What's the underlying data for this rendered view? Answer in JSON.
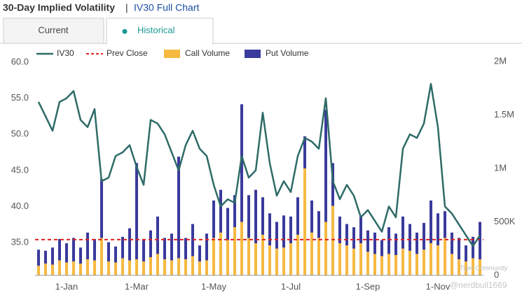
{
  "header": {
    "title": "30-Day Implied Volatility",
    "separator": "|",
    "link": "IV30 Full Chart"
  },
  "tabs": [
    "Current",
    "Historical"
  ],
  "watermark": [
    "Tiger Community",
    "@nerdbull1669"
  ],
  "chart_data": {
    "type": "combo",
    "categories": [
      null,
      null,
      null,
      null,
      "1-Jan",
      null,
      null,
      null,
      null,
      null,
      null,
      null,
      null,
      null,
      "1-Mar",
      null,
      null,
      null,
      null,
      null,
      null,
      null,
      null,
      null,
      null,
      "1-May",
      null,
      null,
      null,
      null,
      null,
      null,
      null,
      null,
      null,
      null,
      "1-Jul",
      null,
      null,
      null,
      null,
      null,
      null,
      null,
      null,
      null,
      null,
      "1-Sep",
      null,
      null,
      null,
      null,
      null,
      null,
      null,
      null,
      null,
      "1-Nov",
      null,
      null,
      null,
      null,
      null,
      null
    ],
    "series": [
      {
        "name": "IV30",
        "color": "#2e6b67",
        "values": [
          54.5,
          52.5,
          50.5,
          54.5,
          55.0,
          56.0,
          52.0,
          51.0,
          53.5,
          43.5,
          44.0,
          47.0,
          47.5,
          48.5,
          45.5,
          43.0,
          52.0,
          51.5,
          50.0,
          47.5,
          45.0,
          48.5,
          50.5,
          48.0,
          47.0,
          43.0,
          40.0,
          41.0,
          40.5,
          47.0,
          44.0,
          45.0,
          53.0,
          46.0,
          41.5,
          43.5,
          42.0,
          47.0,
          49.5,
          49.0,
          48.0,
          55.0,
          43.5,
          41.0,
          43.0,
          41.5,
          38.5,
          39.5,
          38.0,
          36.5,
          40.0,
          38.5,
          48.0,
          50.0,
          49.5,
          51.5,
          57.0,
          51.0,
          40.0,
          39.0,
          37.5,
          36.0,
          34.5,
          36.0
        ]
      },
      {
        "name": "Prev Close",
        "color": "#dd2222",
        "value": 35.4
      },
      {
        "name": "Call Volume",
        "color": "#f5b942",
        "axis": "y2",
        "values": [
          90000,
          110000,
          100000,
          140000,
          120000,
          130000,
          110000,
          150000,
          140000,
          350000,
          130000,
          120000,
          160000,
          140000,
          150000,
          130000,
          170000,
          200000,
          150000,
          140000,
          160000,
          150000,
          180000,
          130000,
          140000,
          350000,
          400000,
          330000,
          450000,
          500000,
          350000,
          300000,
          380000,
          280000,
          250000,
          260000,
          300000,
          380000,
          1000000,
          400000,
          350000,
          500000,
          650000,
          300000,
          280000,
          250000,
          300000,
          220000,
          200000,
          180000,
          200000,
          190000,
          250000,
          230000,
          200000,
          240000,
          300000,
          280000,
          350000,
          200000,
          150000,
          130000,
          160000,
          150000
        ]
      },
      {
        "name": "Put Volume",
        "color": "#3a3a9c",
        "axis": "y2",
        "values": [
          150000,
          120000,
          160000,
          200000,
          180000,
          220000,
          150000,
          250000,
          200000,
          550000,
          180000,
          150000,
          200000,
          300000,
          900000,
          200000,
          250000,
          350000,
          200000,
          250000,
          950000,
          200000,
          300000,
          150000,
          250000,
          350000,
          400000,
          300000,
          300000,
          1100000,
          400000,
          500000,
          350000,
          300000,
          250000,
          300000,
          250000,
          350000,
          300000,
          300000,
          250000,
          1050000,
          400000,
          250000,
          200000,
          200000,
          250000,
          200000,
          200000,
          150000,
          250000,
          200000,
          300000,
          250000,
          200000,
          250000,
          400000,
          300000,
          250000,
          200000,
          200000,
          150000,
          200000,
          350000
        ]
      }
    ],
    "stacked": true,
    "ylim": [
      30.45,
      60.1
    ],
    "yticks": [
      {
        "value": 35,
        "label": "35.0"
      },
      {
        "value": 40,
        "label": "40.0"
      },
      {
        "value": 45,
        "label": "45.0"
      },
      {
        "value": 50,
        "label": "50.0"
      },
      {
        "value": 55,
        "label": "55.0"
      },
      {
        "value": 60,
        "label": "60.0"
      }
    ],
    "y2lim": [
      0,
      2000000
    ],
    "y2ticks": [
      0,
      {
        "value": 500000,
        "label": "500K"
      },
      {
        "value": 1000000,
        "label": "1M"
      },
      {
        "value": 1500000,
        "label": "1.5M"
      },
      {
        "value": 2000000,
        "label": "2M"
      }
    ],
    "grid": false
  }
}
